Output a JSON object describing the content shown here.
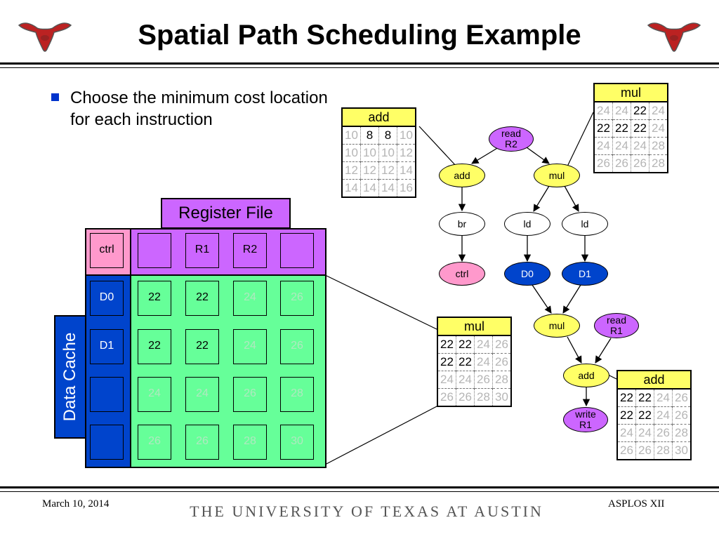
{
  "slide": {
    "title": "Spatial Path Scheduling Example",
    "bullet": "Choose the minimum cost location for each instruction",
    "footer_left": "March 10, 2014",
    "footer_center": "THE UNIVERSITY OF TEXAS AT AUSTIN",
    "footer_right": "ASPLOS XII"
  },
  "grid": {
    "register_file_label": "Register File",
    "data_cache_label": "Data Cache",
    "ctrl_label": "ctrl",
    "registers": [
      "",
      "R1",
      "R2",
      ""
    ],
    "caches": [
      "D0",
      "D1",
      "",
      ""
    ],
    "values": [
      [
        22,
        22,
        24,
        26
      ],
      [
        22,
        22,
        24,
        26
      ],
      [
        24,
        24,
        26,
        28
      ],
      [
        26,
        26,
        28,
        30
      ]
    ]
  },
  "tables": {
    "add_top": {
      "header": "add",
      "rows": [
        [
          10,
          8,
          8,
          10
        ],
        [
          10,
          10,
          10,
          12
        ],
        [
          12,
          12,
          12,
          14
        ],
        [
          14,
          14,
          14,
          16
        ]
      ],
      "min": 8
    },
    "mul_top": {
      "header": "mul",
      "rows": [
        [
          24,
          24,
          22,
          24
        ],
        [
          22,
          22,
          22,
          24
        ],
        [
          24,
          24,
          24,
          28
        ],
        [
          26,
          26,
          26,
          28
        ]
      ],
      "min": 22
    },
    "mul_mid": {
      "header": "mul",
      "rows": [
        [
          22,
          22,
          24,
          26
        ],
        [
          22,
          22,
          24,
          26
        ],
        [
          24,
          24,
          26,
          28
        ],
        [
          26,
          26,
          28,
          30
        ]
      ],
      "min": 22
    },
    "add_bottom": {
      "header": "add",
      "rows": [
        [
          22,
          22,
          24,
          26
        ],
        [
          22,
          22,
          24,
          26
        ],
        [
          24,
          24,
          26,
          28
        ],
        [
          26,
          26,
          28,
          30
        ]
      ],
      "min": 22
    }
  },
  "graph": {
    "read_r2": "read\nR2",
    "add1": "add",
    "mul1": "mul",
    "br": "br",
    "ld1": "ld",
    "ld2": "ld",
    "ctrl": "ctrl",
    "d0": "D0",
    "d1": "D1",
    "mul2": "mul",
    "read_r1": "read\nR1",
    "add2": "add",
    "write_r1": "write\nR1"
  },
  "colors": {
    "title": "#000000",
    "bullet": "#0033cc",
    "register_file": "#cc66ff",
    "ctrl": "#ff99cc",
    "data_cache": "#0044cc",
    "cells": "#66ff99",
    "table_header": "#ffff66",
    "low_cost_text": "#b5b5b5"
  },
  "icons": {
    "logo": "longhorn-logo-icon"
  }
}
